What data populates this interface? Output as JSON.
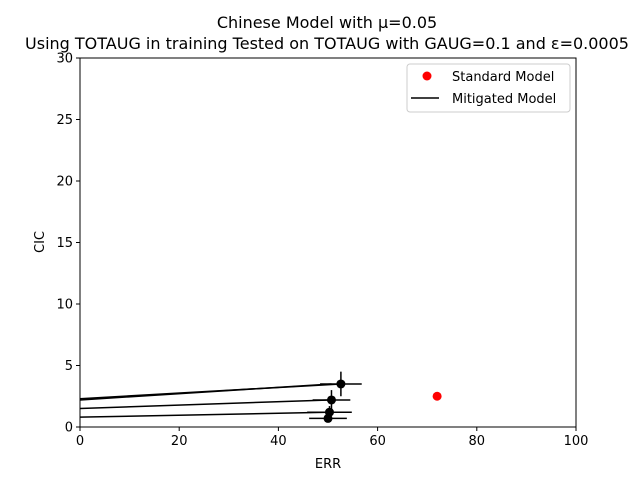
{
  "chart_data": {
    "type": "scatter",
    "title_line1": "Chinese Model with μ=0.05",
    "title_line2": "Using TOTAUG in training Tested on TOTAUG with GAUG=0.1 and ε=0.0005",
    "xlabel": "ERR",
    "ylabel": "CIC",
    "xlim": [
      0,
      100
    ],
    "ylim": [
      0,
      30
    ],
    "xticks": [
      0,
      20,
      40,
      60,
      80,
      100
    ],
    "yticks": [
      0,
      5,
      10,
      15,
      20,
      25,
      30
    ],
    "grid": false,
    "legend_position": "top-right",
    "colors": {
      "standard": "#ff0000",
      "mitigated": "#000000"
    },
    "series": [
      {
        "name": "Standard Model",
        "marker": "circle",
        "points": [
          {
            "x": 72.0,
            "y": 2.5
          }
        ]
      },
      {
        "name": "Mitigated Model",
        "marker": "circle-with-errorbars",
        "points": [
          {
            "x": 50.0,
            "y": 0.7,
            "xerr": 3.8,
            "yerr": 0.3
          },
          {
            "x": 50.3,
            "y": 1.2,
            "xerr": 4.5,
            "yerr": 0.5
          },
          {
            "x": 50.7,
            "y": 2.2,
            "xerr": 3.8,
            "yerr": 0.8
          },
          {
            "x": 52.6,
            "y": 3.5,
            "xerr": 4.2,
            "yerr": 1.0
          }
        ],
        "lines": [
          {
            "x": [
              0,
              50.0
            ],
            "y": [
              0.8,
              1.2
            ]
          },
          {
            "x": [
              0,
              50.3
            ],
            "y": [
              1.5,
              2.2
            ]
          },
          {
            "x": [
              0,
              50.7
            ],
            "y": [
              2.2,
              3.5
            ]
          },
          {
            "x": [
              0,
              52.6
            ],
            "y": [
              2.3,
              3.5
            ]
          }
        ]
      }
    ]
  }
}
